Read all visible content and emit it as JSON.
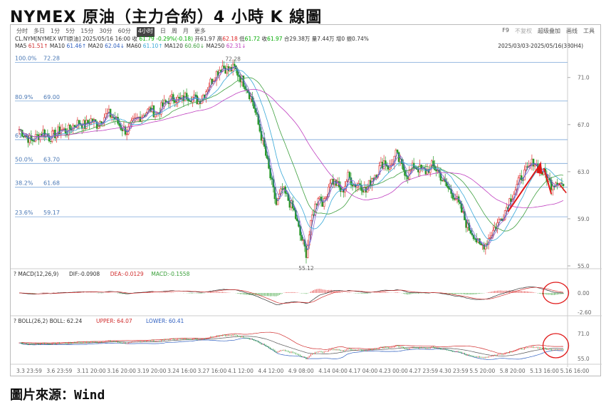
{
  "title": "NYMEX 原油（主力合約）4 小時 K 線圖",
  "source": "圖片來源：Wind",
  "toolbar": {
    "periods": [
      "分时",
      "多日",
      "1分",
      "5分",
      "15分",
      "30分",
      "60分",
      "4小时",
      "日",
      "周",
      "月",
      "更多"
    ],
    "active": "4小时",
    "right": [
      "F9",
      "不复权",
      "超级叠加",
      "画线",
      "工具"
    ]
  },
  "quote": {
    "symbol": "CL.NYM[NYMEX WTI原油]",
    "datetime": "2025/05/16 16:00",
    "close_label": "收",
    "close": "61.79",
    "change": "-0.29%(-0.18)",
    "open_label": "开",
    "open": "61.97",
    "high_label": "高",
    "high": "62.18",
    "low_label": "低",
    "low": "61.72",
    "close2_label": "收",
    "close2": "61.97",
    "volume": "合29.38万",
    "amount": "量7.44万",
    "oi": "增0",
    "amplitude": "振0.74%"
  },
  "ma_legend": [
    {
      "label": "MA5",
      "value": "61.51↑",
      "color": "#d02c2c"
    },
    {
      "label": "MA10",
      "value": "61.46↑",
      "color": "#3060c0"
    },
    {
      "label": "MA20",
      "value": "62.04↓",
      "color": "#3060c0"
    },
    {
      "label": "MA60",
      "value": "61.10↑",
      "color": "#38a8d8"
    },
    {
      "label": "MA120",
      "value": "60.60↓",
      "color": "#40a040"
    },
    {
      "label": "MA250",
      "value": "62.31↓",
      "color": "#c040c0"
    }
  ],
  "date_range": "2025/03/03-2025/05/16(380H4)",
  "macd_legend": {
    "name": "MACD(12,26,9)",
    "dif_label": "DIF:",
    "dif": "-0.0908",
    "dea_label": "DEA:",
    "dea": "-0.0129",
    "macd_label": "MACD:",
    "macd": "-0.1558",
    "colors": {
      "dif": "#333333",
      "dea": "#d02c2c",
      "macd": "#3aa03a"
    }
  },
  "boll_legend": {
    "name": "BOLL(26,2)",
    "boll_label": "BOLL:",
    "boll": "62.24",
    "upper_label": "UPPER:",
    "upper": "64.07",
    "lower_label": "LOWER:",
    "lower": "60.41",
    "colors": {
      "upper": "#d02c2c",
      "lower": "#3060c0"
    }
  },
  "chart_data": {
    "type": "candlestick",
    "y_axis_ticks": [
      55.0,
      59.0,
      63.0,
      67.0,
      71.0
    ],
    "ylim": [
      55.0,
      72.8
    ],
    "macd_ticks": [
      "0.00",
      "-2.60"
    ],
    "boll_ticks": [
      "71.0",
      "55.0"
    ],
    "x_ticks": [
      "3.3 23:59",
      "3.6 23:59",
      "3.11 20:00",
      "3.16 20:00",
      "3.19 20:00",
      "3.24 16:00",
      "3.27 16:00",
      "4.1 12:00",
      "4.4 12:00",
      "4.9 08:00",
      "4.14 04:00",
      "4.17 04:00",
      "4.23 00:00",
      "4.27 23:59",
      "4.30 23:59",
      "5.5 20:00",
      "5.8 20:00",
      "5.13 16:00",
      "5.16 16:00"
    ],
    "fibonacci": [
      {
        "label": "100.0%",
        "value": 72.28
      },
      {
        "label": "80.9%",
        "value": 69.0
      },
      {
        "label": "61.8%",
        "value": 65.72
      },
      {
        "label": "50.0%",
        "value": 63.7
      },
      {
        "label": "38.2%",
        "value": 61.68
      },
      {
        "label": "23.6%",
        "value": 59.17
      }
    ],
    "annotations": [
      {
        "text": "72.28",
        "value": 72.28
      },
      {
        "text": "55.12",
        "value": 55.12
      }
    ],
    "close_path": [
      66.6,
      66.1,
      65.6,
      66.0,
      66.4,
      65.9,
      66.2,
      66.6,
      66.4,
      66.9,
      67.2,
      66.9,
      67.4,
      67.0,
      67.6,
      67.9,
      67.5,
      66.8,
      66.4,
      67.1,
      67.6,
      68.0,
      68.3,
      67.9,
      68.6,
      69.1,
      69.3,
      69.0,
      69.5,
      69.3,
      69.0,
      69.7,
      70.6,
      71.4,
      72.0,
      71.6,
      71.8,
      71.0,
      70.2,
      69.0,
      67.0,
      65.0,
      62.5,
      60.2,
      61.5,
      60.6,
      59.6,
      57.6,
      56.1,
      59.2,
      61.0,
      60.3,
      62.3,
      62.0,
      61.2,
      62.6,
      61.9,
      62.0,
      61.3,
      62.5,
      63.1,
      63.9,
      63.3,
      64.5,
      63.4,
      62.7,
      63.5,
      63.2,
      63.0,
      63.5,
      63.1,
      62.1,
      61.4,
      60.8,
      59.6,
      58.3,
      57.7,
      56.6,
      56.9,
      57.8,
      58.6,
      59.4,
      60.6,
      61.5,
      62.6,
      63.1,
      63.9,
      63.2,
      62.7,
      61.9,
      62.3,
      61.8
    ]
  }
}
